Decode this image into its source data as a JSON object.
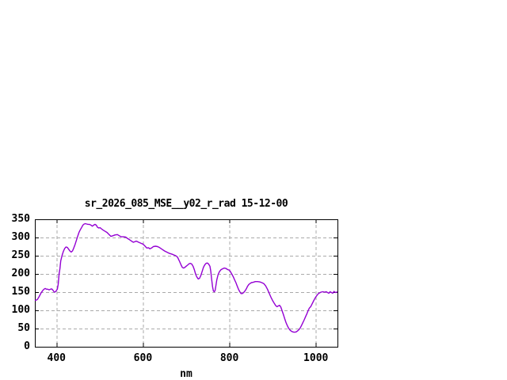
{
  "chart_data": {
    "type": "line",
    "title": "sr_2026_085_MSE__y02_r_rad 15-12-00",
    "xlabel": "nm",
    "ylabel": "",
    "xlim": [
      350,
      1050
    ],
    "ylim": [
      0,
      350
    ],
    "x_ticks": [
      400,
      600,
      800,
      1000
    ],
    "y_ticks": [
      0,
      50,
      100,
      150,
      200,
      250,
      300,
      350
    ],
    "grid": true,
    "legend_position": "none",
    "colors": {
      "line": "#9400d3",
      "grid": "#aaaaaa",
      "border": "#000000",
      "text": "#000000",
      "background": "#ffffff"
    },
    "series": [
      {
        "x": [
          350,
          353,
          356,
          360,
          364,
          368,
          371,
          374,
          377,
          380,
          383,
          386,
          389,
          392,
          395,
          398,
          400,
          402,
          404,
          405,
          406,
          408,
          409,
          410,
          413,
          416,
          419,
          422,
          425,
          428,
          431,
          434,
          437,
          440,
          443,
          446,
          449,
          452,
          455,
          458,
          461,
          464,
          467,
          470,
          473,
          476,
          480,
          483,
          486,
          489,
          492,
          495,
          498,
          501,
          504,
          507,
          511,
          517,
          521,
          526,
          531,
          535,
          541,
          545,
          550,
          555,
          560,
          565,
          570,
          575,
          578,
          582,
          585,
          590,
          596,
          600,
          605,
          609,
          613,
          616,
          620,
          624,
          629,
          634,
          639,
          645,
          650,
          655,
          660,
          665,
          668,
          672,
          676,
          680,
          684,
          688,
          691,
          694,
          697,
          700,
          703,
          707,
          710,
          713,
          716,
          719,
          722,
          725,
          728,
          731,
          734,
          737,
          740,
          743,
          746,
          749,
          752,
          755,
          757,
          759,
          761,
          763,
          765,
          767,
          769,
          771,
          774,
          777,
          780,
          784,
          788,
          792,
          796,
          800,
          803,
          806,
          809,
          812,
          815,
          818,
          821,
          824,
          827,
          830,
          833,
          836,
          839,
          842,
          845,
          848,
          851,
          855,
          860,
          865,
          870,
          875,
          880,
          884,
          888,
          892,
          896,
          900,
          904,
          907,
          910,
          913,
          916,
          919,
          922,
          925,
          928,
          931,
          934,
          937,
          940,
          943,
          946,
          949,
          952,
          955,
          958,
          961,
          964,
          967,
          970,
          973,
          976,
          979,
          982,
          985,
          988,
          991,
          994,
          997,
          1000,
          1003,
          1006,
          1009,
          1012,
          1016,
          1020,
          1024,
          1027,
          1030,
          1033,
          1036,
          1039,
          1042,
          1045,
          1048,
          1050
        ],
        "y": [
          127,
          128,
          130,
          138,
          147,
          154,
          158,
          160,
          158,
          158,
          156,
          158,
          159,
          155,
          150,
          151,
          155,
          158,
          172,
          185,
          200,
          215,
          226,
          236,
          251,
          262,
          270,
          274,
          273,
          268,
          263,
          260,
          263,
          271,
          281,
          292,
          303,
          314,
          321,
          327,
          334,
          337,
          338,
          337,
          336,
          336,
          334,
          331,
          334,
          336,
          334,
          328,
          326,
          327,
          324,
          321,
          318,
          314,
          309,
          303,
          305,
          307,
          308,
          305,
          302,
          302,
          301,
          297,
          293,
          289,
          287,
          289,
          290,
          287,
          284,
          282,
          276,
          271,
          272,
          269,
          271,
          275,
          276,
          275,
          272,
          267,
          263,
          260,
          257,
          255,
          254,
          252,
          250,
          246,
          236,
          225,
          218,
          216,
          218,
          221,
          224,
          228,
          229,
          227,
          221,
          211,
          199,
          191,
          186,
          188,
          196,
          207,
          218,
          225,
          229,
          230,
          227,
          221,
          207,
          185,
          165,
          153,
          151,
          155,
          170,
          184,
          199,
          206,
          211,
          214,
          216,
          215,
          212,
          210,
          205,
          199,
          192,
          184,
          176,
          167,
          158,
          151,
          146,
          146,
          149,
          153,
          159,
          166,
          171,
          174,
          176,
          177,
          179,
          179,
          178,
          176,
          173,
          167,
          158,
          147,
          136,
          127,
          119,
          113,
          110,
          112,
          114,
          109,
          99,
          88,
          77,
          66,
          58,
          51,
          46,
          43,
          41,
          40,
          40,
          41,
          44,
          47,
          52,
          59,
          66,
          74,
          82,
          90,
          99,
          106,
          110,
          117,
          124,
          131,
          137,
          142,
          146,
          148,
          150,
          151,
          150,
          151,
          149,
          147,
          151,
          149,
          147,
          152,
          149,
          150,
          150
        ]
      }
    ]
  }
}
